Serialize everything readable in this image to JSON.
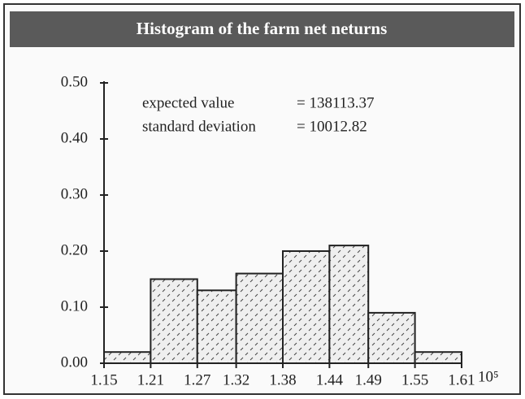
{
  "chart_data": {
    "type": "histogram",
    "title": "Histogram of the farm net neturns",
    "bins": [
      1.15,
      1.21,
      1.27,
      1.32,
      1.38,
      1.44,
      1.49,
      1.55,
      1.61
    ],
    "values": [
      0.02,
      0.15,
      0.13,
      0.16,
      0.2,
      0.21,
      0.09,
      0.02
    ],
    "xlim": [
      1.15,
      1.61
    ],
    "xticks": [
      1.15,
      1.21,
      1.27,
      1.32,
      1.38,
      1.44,
      1.49,
      1.55,
      1.61
    ],
    "x_unit_label": "10⁵",
    "ylim": [
      0,
      0.5
    ],
    "yticks": [
      {
        "value": 0,
        "label": "0.00"
      },
      {
        "value": 0.1,
        "label": "0.10"
      },
      {
        "value": 0.2,
        "label": "0.20"
      },
      {
        "value": 0.3,
        "label": "0.30"
      },
      {
        "value": 0.4,
        "label": "0.40"
      },
      {
        "value": 0.5,
        "label": "0.50"
      }
    ],
    "annotations": [
      {
        "label": "expected value",
        "value": "= 138113.37"
      },
      {
        "label": "standard deviation",
        "value": "= 10012.82"
      }
    ],
    "color": "#ececec"
  }
}
